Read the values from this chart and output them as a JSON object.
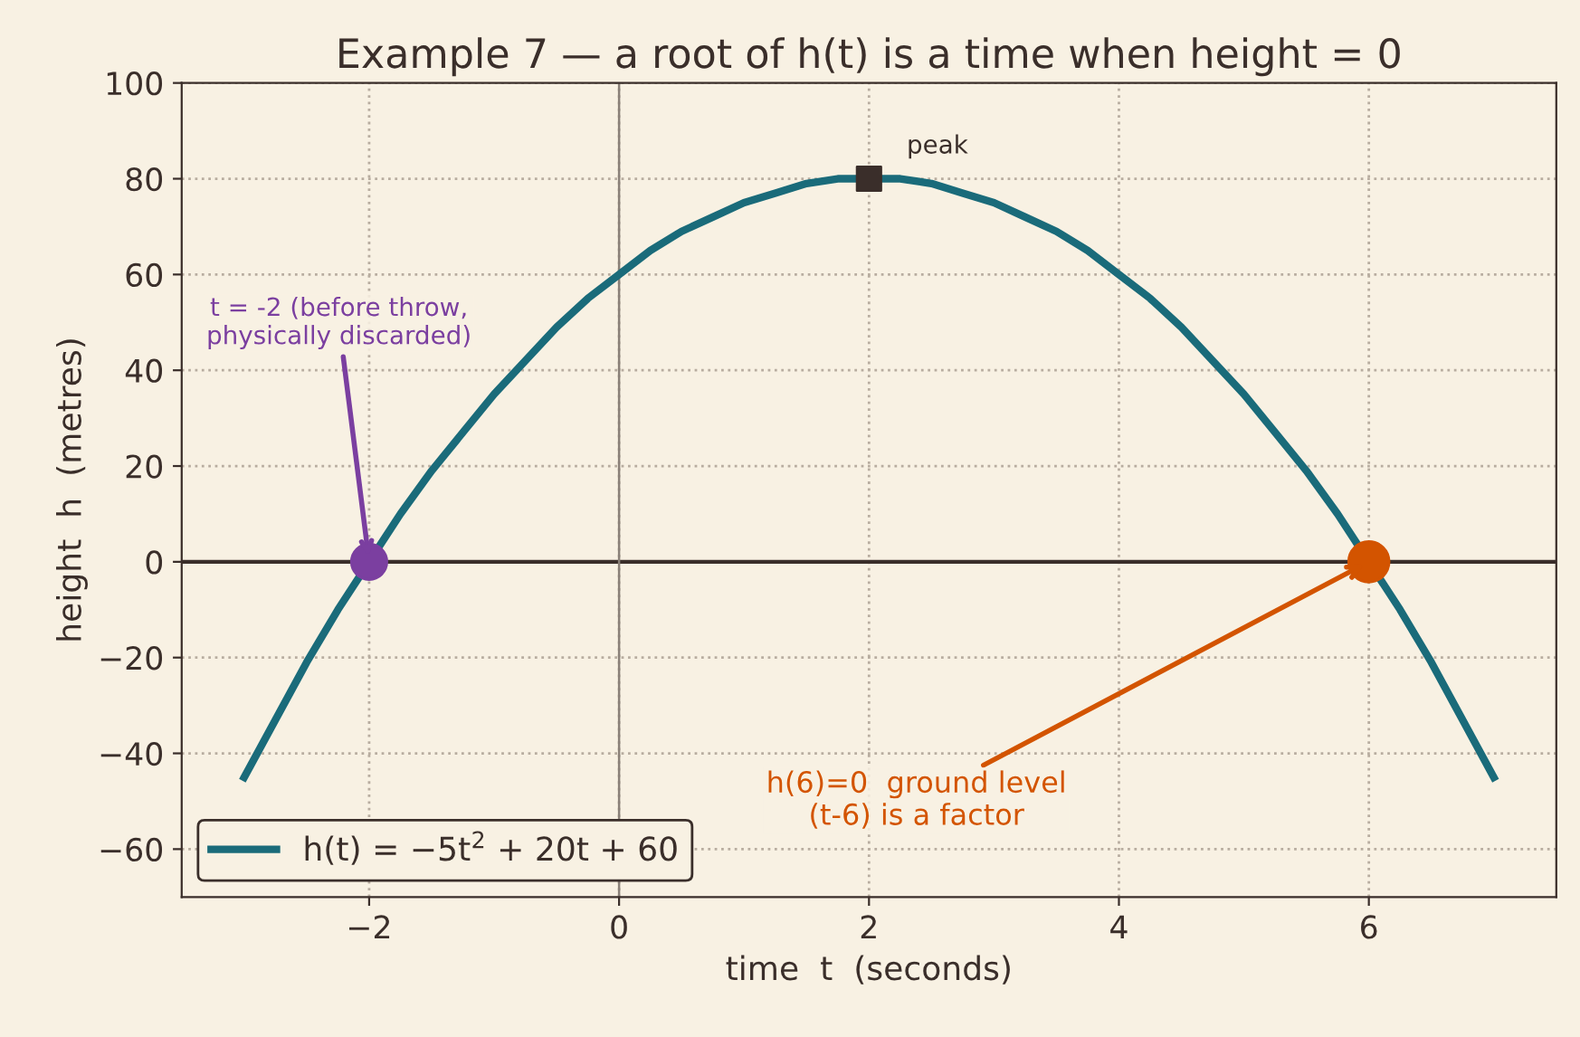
{
  "chart_data": {
    "type": "line",
    "title": "Example 7 — a root of h(t) is a time when height = 0",
    "xlabel": "time  t  (seconds)",
    "ylabel": "height  h  (metres)",
    "series": [
      {
        "name": "h(t) = −5t$^{2}$ + 20t + 60",
        "color": "#1a6b7a",
        "x": [
          -3,
          -2.75,
          -2.5,
          -2.25,
          -2,
          -1.75,
          -1.5,
          -1.25,
          -1,
          -0.75,
          -0.5,
          -0.25,
          0,
          0.25,
          0.5,
          0.75,
          1,
          1.25,
          1.5,
          1.75,
          2,
          2.25,
          2.5,
          2.75,
          3,
          3.25,
          3.5,
          3.75,
          4,
          4.25,
          4.5,
          4.75,
          5,
          5.25,
          5.5,
          5.75,
          6,
          6.25,
          6.5,
          6.75,
          7
        ],
        "values": [
          -45,
          -33,
          -21,
          -10,
          0,
          10,
          19,
          27,
          35,
          42,
          49,
          55,
          60,
          65,
          69,
          72,
          75,
          77,
          79,
          80,
          80,
          80,
          79,
          77,
          75,
          72,
          69,
          65,
          60,
          55,
          49,
          42,
          35,
          27,
          19,
          10,
          0,
          -10,
          -21,
          -33,
          -45
        ]
      },
      {
        "type": "scatter",
        "marker": "circle",
        "color": "#7b3fa0",
        "x": [
          -2
        ],
        "values": [
          0
        ]
      },
      {
        "type": "scatter",
        "marker": "circle",
        "color": "#d35400",
        "x": [
          6
        ],
        "values": [
          0
        ]
      },
      {
        "type": "scatter",
        "marker": "square",
        "color": "#3a2e2a",
        "x": [
          2
        ],
        "values": [
          80
        ]
      }
    ],
    "annotations": [
      {
        "text": "peak",
        "x": 2,
        "y": 80
      },
      {
        "text": "t = -2 (before throw,\nphysically discarded)",
        "x": -2,
        "y": 0
      },
      {
        "text": "h(6)=0  ground level\n(t-6) is a factor",
        "x": 6,
        "y": 0
      }
    ],
    "ref_lines": [
      {
        "axis": "y",
        "value": 0,
        "color": "#3a2e2a"
      },
      {
        "axis": "x",
        "value": 0,
        "color": "#8a8078"
      }
    ],
    "xlim": [
      -3.5,
      7.5
    ],
    "ylim": [
      -70,
      100
    ],
    "xticks": [
      {
        "value": -2,
        "label": "−2"
      },
      0,
      2,
      4,
      6
    ],
    "yticks": [
      {
        "value": -60,
        "label": "−60"
      },
      {
        "value": -40,
        "label": "−40"
      },
      {
        "value": -20,
        "label": "−20"
      },
      0,
      20,
      40,
      60,
      80,
      100
    ],
    "grid": true,
    "legend": "bottom left",
    "line_style": "solid"
  }
}
